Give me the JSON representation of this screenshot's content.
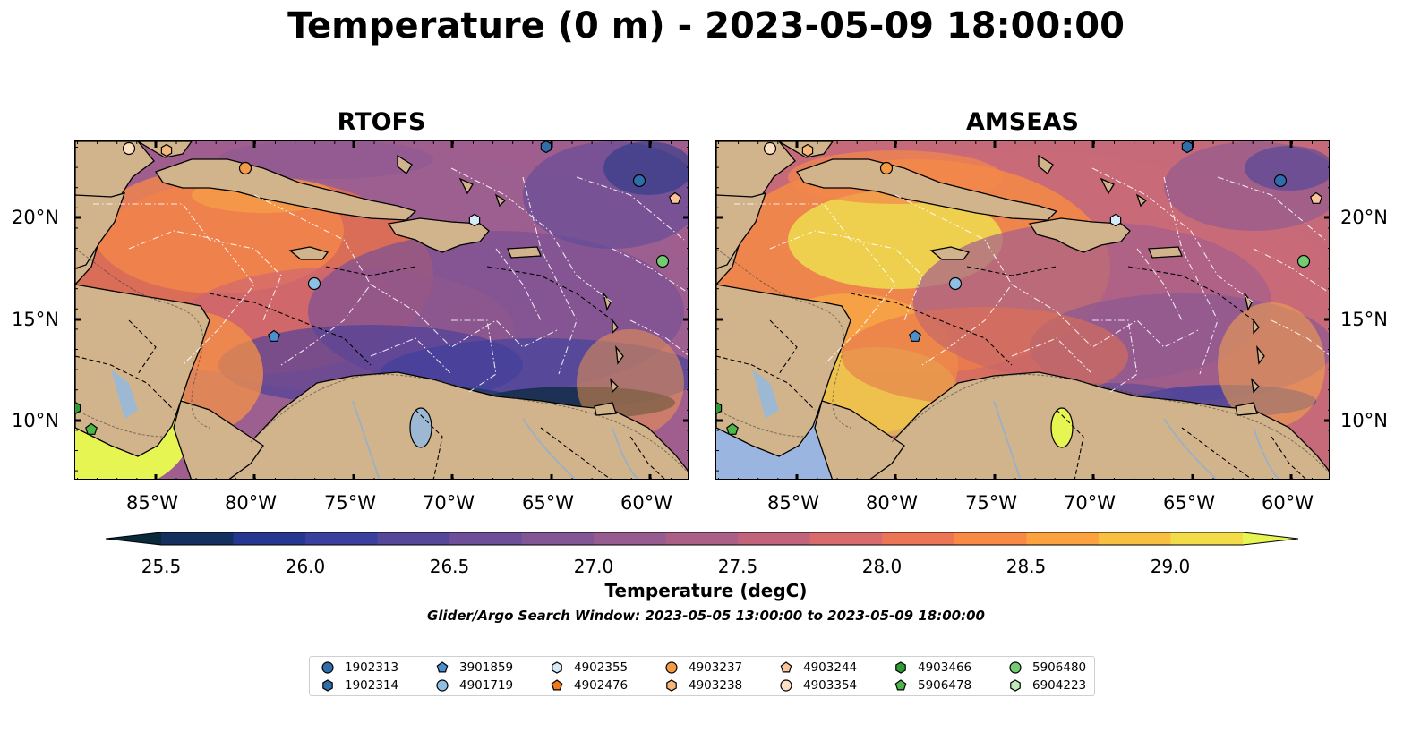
{
  "title": "Temperature (0 m) - 2023-05-09 18:00:00",
  "panels": [
    {
      "title": "RTOFS"
    },
    {
      "title": "AMSEAS"
    }
  ],
  "lon_ticks": [
    "85°W",
    "80°W",
    "75°W",
    "70°W",
    "65°W",
    "60°W"
  ],
  "lat_ticks": [
    "20°N",
    "15°N",
    "10°N"
  ],
  "colorbar": {
    "label": "Temperature (degC)",
    "ticks": [
      "25.5",
      "26.0",
      "26.5",
      "27.0",
      "27.5",
      "28.0",
      "28.5",
      "29.0"
    ],
    "colors": [
      "#0a2a3c",
      "#14305e",
      "#263791",
      "#3b3f9e",
      "#57479a",
      "#6e4e98",
      "#825594",
      "#965b8f",
      "#ab5f87",
      "#c1647b",
      "#d86b6b",
      "#ec7555",
      "#f98a45",
      "#fca340",
      "#f9bf40",
      "#f2dd49",
      "#e6f552"
    ]
  },
  "search_window": "Glider/Argo Search Window: 2023-05-05 13:00:00 to 2023-05-09 18:00:00",
  "legend": [
    {
      "id": "1902313",
      "marker": "circle",
      "color": "#2f6eaa"
    },
    {
      "id": "1902314",
      "marker": "hexagon",
      "color": "#2f6eaa"
    },
    {
      "id": "3901859",
      "marker": "pentagon",
      "color": "#4a90cf"
    },
    {
      "id": "4901719",
      "marker": "circle",
      "color": "#8ec0e6"
    },
    {
      "id": "4902355",
      "marker": "hexagon",
      "color": "#d4ebfa"
    },
    {
      "id": "4902476",
      "marker": "pentagon",
      "color": "#f07a1a"
    },
    {
      "id": "4903237",
      "marker": "circle",
      "color": "#f59a45"
    },
    {
      "id": "4903238",
      "marker": "hexagon",
      "color": "#f8b67a"
    },
    {
      "id": "4903244",
      "marker": "pentagon",
      "color": "#f9c49a"
    },
    {
      "id": "4903354",
      "marker": "circle",
      "color": "#fde0c4"
    },
    {
      "id": "4903466",
      "marker": "hexagon",
      "color": "#2e9b33"
    },
    {
      "id": "5906478",
      "marker": "pentagon",
      "color": "#49b849"
    },
    {
      "id": "5906480",
      "marker": "circle",
      "color": "#72cd72"
    },
    {
      "id": "6904223",
      "marker": "hexagon",
      "color": "#bdebb5"
    }
  ],
  "colors": {
    "land": "#d2b48c",
    "lake": "#9cb8d2",
    "pacific_amseas": "#9ab6e0"
  }
}
